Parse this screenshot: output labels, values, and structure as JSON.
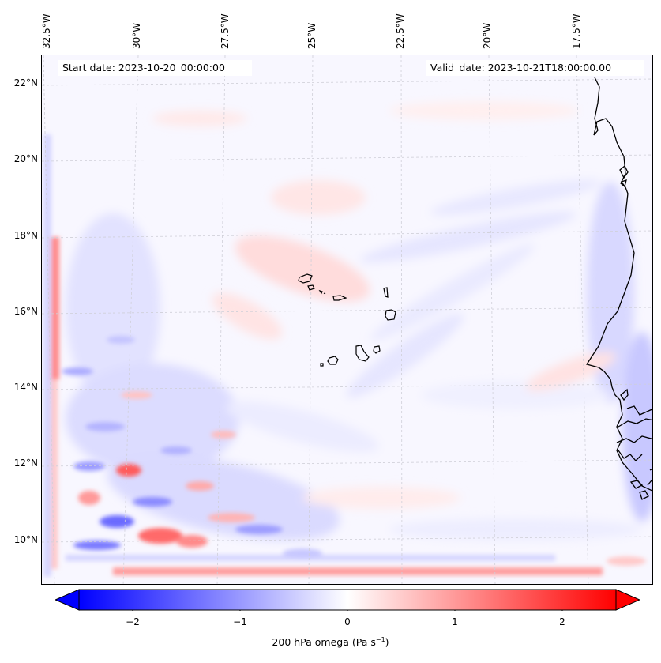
{
  "header": {
    "start_date": "Start date: 2023-10-20_00:00:00",
    "valid_date": "Valid_date: 2023-10-21T18:00:00.00"
  },
  "map": {
    "longitude_labels": [
      "32.5°W",
      "30°W",
      "27.5°W",
      "25°W",
      "22.5°W",
      "20°W",
      "17.5°W"
    ],
    "latitude_labels": [
      "22°N",
      "20°N",
      "18°N",
      "16°N",
      "14°N",
      "12°N",
      "10°N"
    ],
    "field": "200 hPa omega",
    "extent": {
      "lon_min": -32.8,
      "lon_max": -15.6,
      "lat_min": 8.9,
      "lat_max": 22.8
    }
  },
  "colorbar": {
    "ticks": [
      "−2",
      "−1",
      "0",
      "1",
      "2"
    ],
    "tick_values": [
      -2,
      -1,
      0,
      1,
      2
    ],
    "range": [
      -2.5,
      2.5
    ],
    "label_main": "200 hPa omega (Pa s",
    "label_exp": "−1",
    "label_end": ")",
    "colors": {
      "negative": "#0000ff",
      "zero": "#ffffff",
      "positive": "#ff0000"
    }
  }
}
